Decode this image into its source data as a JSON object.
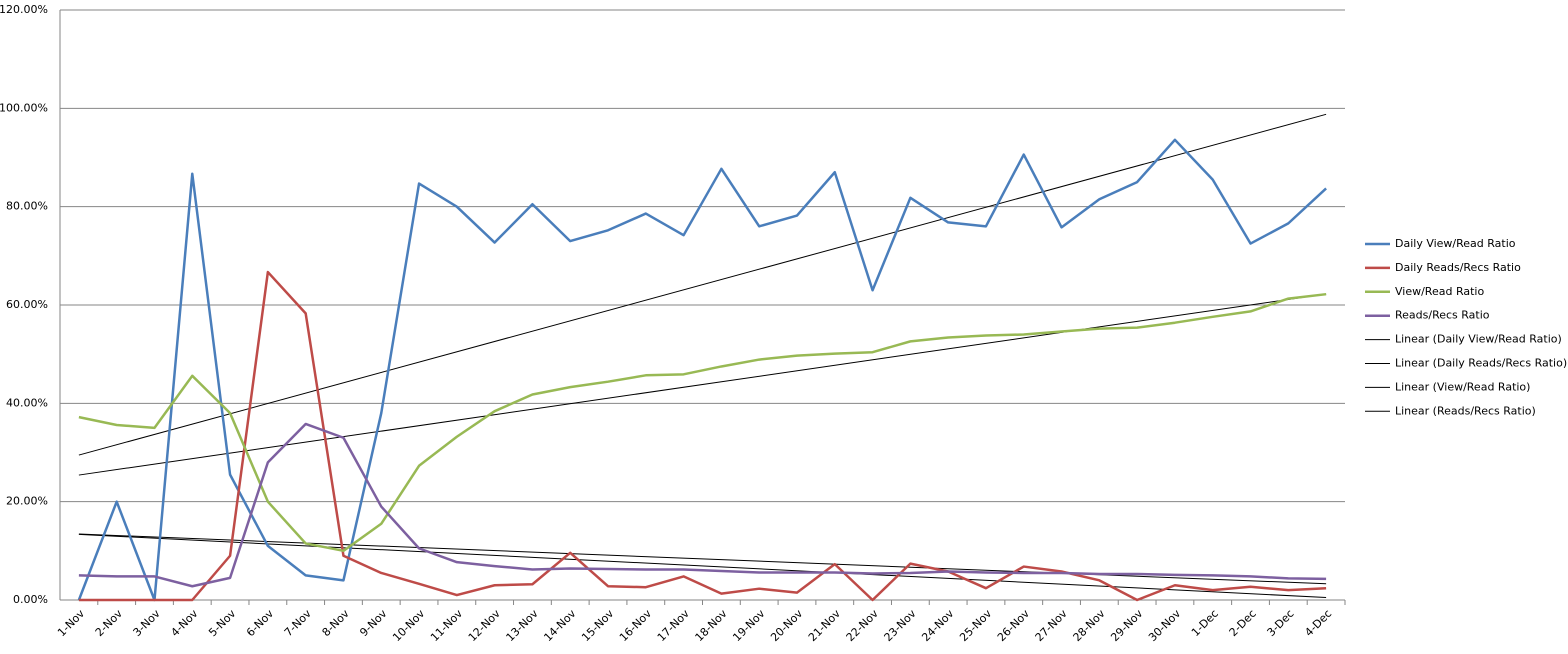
{
  "chart_data": {
    "type": "line",
    "categories": [
      "1-Nov",
      "2-Nov",
      "3-Nov",
      "4-Nov",
      "5-Nov",
      "6-Nov",
      "7-Nov",
      "8-Nov",
      "9-Nov",
      "10-Nov",
      "11-Nov",
      "12-Nov",
      "13-Nov",
      "14-Nov",
      "15-Nov",
      "16-Nov",
      "17-Nov",
      "18-Nov",
      "19-Nov",
      "20-Nov",
      "21-Nov",
      "22-Nov",
      "23-Nov",
      "24-Nov",
      "25-Nov",
      "26-Nov",
      "27-Nov",
      "28-Nov",
      "29-Nov",
      "30-Nov",
      "1-Dec",
      "2-Dec",
      "3-Dec",
      "4-Dec"
    ],
    "series": [
      {
        "name": "Daily View/Read Ratio",
        "color": "#4a7ebb",
        "trendline_name": "Linear (Daily View/Read Ratio)",
        "trendline_color": "#000000",
        "values": [
          0,
          20,
          0,
          86.7,
          25.5,
          11,
          5,
          4,
          38,
          84.7,
          80,
          72.7,
          80.5,
          73,
          75.2,
          78.6,
          74.2,
          87.7,
          76,
          78.2,
          87,
          63,
          81.8,
          76.8,
          76,
          90.6,
          75.8,
          81.5,
          85,
          93.6,
          85.5,
          72.5,
          76.6,
          83.7
        ]
      },
      {
        "name": "Daily Reads/Recs Ratio",
        "color": "#be4b48",
        "trendline_name": "Linear (Daily Reads/Recs Ratio)",
        "trendline_color": "#000000",
        "values": [
          0,
          0,
          0,
          0,
          9,
          66.7,
          58.3,
          9,
          5.5,
          3.3,
          1,
          3,
          3.2,
          9.6,
          2.8,
          2.6,
          4.8,
          1.3,
          2.3,
          1.5,
          7.3,
          0,
          7.4,
          5.8,
          2.4,
          6.8,
          5.8,
          4,
          0,
          3,
          2,
          2.7,
          2,
          2.4
        ]
      },
      {
        "name": "View/Read Ratio",
        "color": "#98b954",
        "trendline_name": "Linear (View/Read Ratio)",
        "trendline_color": "#000000",
        "values": [
          37.2,
          35.6,
          35,
          45.6,
          38,
          20,
          11.5,
          10,
          15.5,
          27.3,
          33.2,
          38.4,
          41.8,
          43.3,
          44.4,
          45.7,
          45.9,
          47.5,
          48.9,
          49.7,
          50.1,
          50.4,
          52.6,
          53.4,
          53.8,
          54,
          54.6,
          55.2,
          55.4,
          56.4,
          57.6,
          58.7,
          61.3,
          62.2
        ]
      },
      {
        "name": "Reads/Recs Ratio",
        "color": "#7d60a0",
        "trendline_name": "Linear (Reads/Recs Ratio)",
        "trendline_color": "#000000",
        "values": [
          5,
          4.8,
          4.8,
          2.8,
          4.5,
          28,
          35.8,
          33,
          19,
          10.5,
          7.7,
          6.9,
          6.2,
          6.4,
          6.3,
          6.2,
          6.2,
          5.9,
          5.6,
          5.6,
          5.6,
          5.4,
          5.5,
          5.8,
          5.6,
          5.5,
          5.5,
          5.3,
          5.3,
          5.1,
          5,
          4.8,
          4.4,
          4.3
        ]
      }
    ],
    "ylim": [
      0,
      120
    ],
    "yticks": [
      {
        "value": 0,
        "label": "0.00%"
      },
      {
        "value": 20,
        "label": "20.00%"
      },
      {
        "value": 40,
        "label": "40.00%"
      },
      {
        "value": 60,
        "label": "60.00%"
      },
      {
        "value": 80,
        "label": "80.00%"
      },
      {
        "value": 100,
        "label": "100.00%"
      },
      {
        "value": 120,
        "label": "120.00%"
      }
    ],
    "grid": true,
    "legend": "right"
  }
}
